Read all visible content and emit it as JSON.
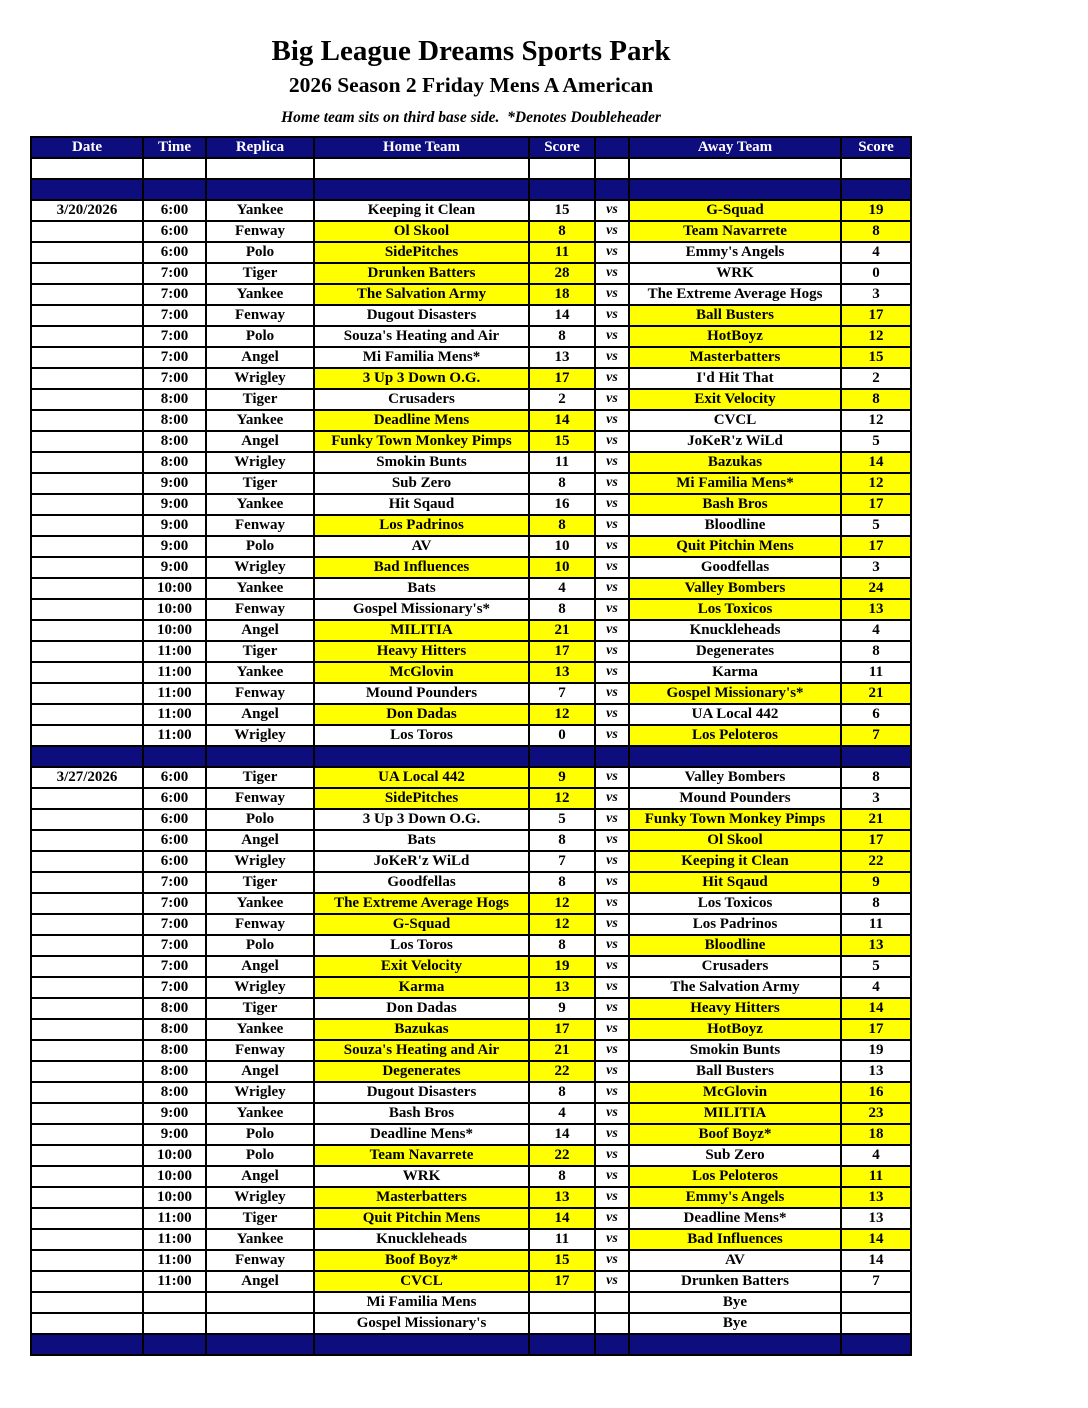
{
  "header": {
    "title": "Big League Dreams Sports Park",
    "subtitle": "2026 Season 2 Friday Mens A American",
    "note": "Home team sits on third base side.  *Denotes Doubleheader"
  },
  "colors": {
    "header_bg": "#0D0D7E",
    "header_text": "#FFFFFF",
    "highlight": "#FFFF00",
    "border": "#000000"
  },
  "table": {
    "columns": [
      "Date",
      "Time",
      "Replica",
      "Home Team",
      "Score",
      "",
      "Away Team",
      "Score"
    ],
    "vs_label": "vs",
    "rows": [
      {
        "t": "spacer"
      },
      {
        "t": "divider"
      },
      {
        "t": "game",
        "date": "3/20/2026",
        "time": "6:00",
        "replica": "Yankee",
        "home": "Keeping it Clean",
        "home_score": "15",
        "away": "G-Squad",
        "away_score": "19",
        "winner": "away"
      },
      {
        "t": "game",
        "date": "",
        "time": "6:00",
        "replica": "Fenway",
        "home": "Ol Skool",
        "home_score": "8",
        "away": "Team Navarrete",
        "away_score": "8",
        "winner": "both"
      },
      {
        "t": "game",
        "date": "",
        "time": "6:00",
        "replica": "Polo",
        "home": "SidePitches",
        "home_score": "11",
        "away": "Emmy's Angels",
        "away_score": "4",
        "winner": "home"
      },
      {
        "t": "game",
        "date": "",
        "time": "7:00",
        "replica": "Tiger",
        "home": "Drunken Batters",
        "home_score": "28",
        "away": "WRK",
        "away_score": "0",
        "winner": "home"
      },
      {
        "t": "game",
        "date": "",
        "time": "7:00",
        "replica": "Yankee",
        "home": "The Salvation Army",
        "home_score": "18",
        "away": "The Extreme Average Hogs",
        "away_score": "3",
        "winner": "home"
      },
      {
        "t": "game",
        "date": "",
        "time": "7:00",
        "replica": "Fenway",
        "home": "Dugout Disasters",
        "home_score": "14",
        "away": "Ball Busters",
        "away_score": "17",
        "winner": "away"
      },
      {
        "t": "game",
        "date": "",
        "time": "7:00",
        "replica": "Polo",
        "home": "Souza's Heating and Air",
        "home_score": "8",
        "away": "HotBoyz",
        "away_score": "12",
        "winner": "away"
      },
      {
        "t": "game",
        "date": "",
        "time": "7:00",
        "replica": "Angel",
        "home": "Mi Familia Mens*",
        "home_score": "13",
        "away": "Masterbatters",
        "away_score": "15",
        "winner": "away"
      },
      {
        "t": "game",
        "date": "",
        "time": "7:00",
        "replica": "Wrigley",
        "home": "3 Up 3 Down O.G.",
        "home_score": "17",
        "away": "I'd Hit That",
        "away_score": "2",
        "winner": "home"
      },
      {
        "t": "game",
        "date": "",
        "time": "8:00",
        "replica": "Tiger",
        "home": "Crusaders",
        "home_score": "2",
        "away": "Exit Velocity",
        "away_score": "8",
        "winner": "away"
      },
      {
        "t": "game",
        "date": "",
        "time": "8:00",
        "replica": "Yankee",
        "home": "Deadline Mens",
        "home_score": "14",
        "away": "CVCL",
        "away_score": "12",
        "winner": "home"
      },
      {
        "t": "game",
        "date": "",
        "time": "8:00",
        "replica": "Angel",
        "home": "Funky Town Monkey Pimps",
        "home_score": "15",
        "away": "JoKeR'z WiLd",
        "away_score": "5",
        "winner": "home"
      },
      {
        "t": "game",
        "date": "",
        "time": "8:00",
        "replica": "Wrigley",
        "home": "Smokin Bunts",
        "home_score": "11",
        "away": "Bazukas",
        "away_score": "14",
        "winner": "away"
      },
      {
        "t": "game",
        "date": "",
        "time": "9:00",
        "replica": "Tiger",
        "home": "Sub Zero",
        "home_score": "8",
        "away": "Mi Familia Mens*",
        "away_score": "12",
        "winner": "away"
      },
      {
        "t": "game",
        "date": "",
        "time": "9:00",
        "replica": "Yankee",
        "home": "Hit Sqaud",
        "home_score": "16",
        "away": "Bash Bros",
        "away_score": "17",
        "winner": "away"
      },
      {
        "t": "game",
        "date": "",
        "time": "9:00",
        "replica": "Fenway",
        "home": "Los Padrinos",
        "home_score": "8",
        "away": "Bloodline",
        "away_score": "5",
        "winner": "home"
      },
      {
        "t": "game",
        "date": "",
        "time": "9:00",
        "replica": "Polo",
        "home": "AV",
        "home_score": "10",
        "away": "Quit Pitchin Mens",
        "away_score": "17",
        "winner": "away"
      },
      {
        "t": "game",
        "date": "",
        "time": "9:00",
        "replica": "Wrigley",
        "home": "Bad Influences",
        "home_score": "10",
        "away": "Goodfellas",
        "away_score": "3",
        "winner": "home"
      },
      {
        "t": "game",
        "date": "",
        "time": "10:00",
        "replica": "Yankee",
        "home": "Bats",
        "home_score": "4",
        "away": "Valley Bombers",
        "away_score": "24",
        "winner": "away"
      },
      {
        "t": "game",
        "date": "",
        "time": "10:00",
        "replica": "Fenway",
        "home": "Gospel Missionary's*",
        "home_score": "8",
        "away": "Los Toxicos",
        "away_score": "13",
        "winner": "away"
      },
      {
        "t": "game",
        "date": "",
        "time": "10:00",
        "replica": "Angel",
        "home": "MILITIA",
        "home_score": "21",
        "away": "Knuckleheads",
        "away_score": "4",
        "winner": "home"
      },
      {
        "t": "game",
        "date": "",
        "time": "11:00",
        "replica": "Tiger",
        "home": "Heavy Hitters",
        "home_score": "17",
        "away": "Degenerates",
        "away_score": "8",
        "winner": "home"
      },
      {
        "t": "game",
        "date": "",
        "time": "11:00",
        "replica": "Yankee",
        "home": "McGlovin",
        "home_score": "13",
        "away": "Karma",
        "away_score": "11",
        "winner": "home"
      },
      {
        "t": "game",
        "date": "",
        "time": "11:00",
        "replica": "Fenway",
        "home": "Mound Pounders",
        "home_score": "7",
        "away": "Gospel Missionary's*",
        "away_score": "21",
        "winner": "away"
      },
      {
        "t": "game",
        "date": "",
        "time": "11:00",
        "replica": "Angel",
        "home": "Don Dadas",
        "home_score": "12",
        "away": "UA Local 442",
        "away_score": "6",
        "winner": "home"
      },
      {
        "t": "game",
        "date": "",
        "time": "11:00",
        "replica": "Wrigley",
        "home": "Los Toros",
        "home_score": "0",
        "away": "Los Peloteros",
        "away_score": "7",
        "winner": "away"
      },
      {
        "t": "divider"
      },
      {
        "t": "game",
        "date": "3/27/2026",
        "time": "6:00",
        "replica": "Tiger",
        "home": "UA Local 442",
        "home_score": "9",
        "away": "Valley Bombers",
        "away_score": "8",
        "winner": "home"
      },
      {
        "t": "game",
        "date": "",
        "time": "6:00",
        "replica": "Fenway",
        "home": "SidePitches",
        "home_score": "12",
        "away": "Mound Pounders",
        "away_score": "3",
        "winner": "home"
      },
      {
        "t": "game",
        "date": "",
        "time": "6:00",
        "replica": "Polo",
        "home": "3 Up 3 Down O.G.",
        "home_score": "5",
        "away": "Funky Town Monkey Pimps",
        "away_score": "21",
        "winner": "away"
      },
      {
        "t": "game",
        "date": "",
        "time": "6:00",
        "replica": "Angel",
        "home": "Bats",
        "home_score": "8",
        "away": "Ol Skool",
        "away_score": "17",
        "winner": "away"
      },
      {
        "t": "game",
        "date": "",
        "time": "6:00",
        "replica": "Wrigley",
        "home": "JoKeR'z WiLd",
        "home_score": "7",
        "away": "Keeping it Clean",
        "away_score": "22",
        "winner": "away"
      },
      {
        "t": "game",
        "date": "",
        "time": "7:00",
        "replica": "Tiger",
        "home": "Goodfellas",
        "home_score": "8",
        "away": "Hit Sqaud",
        "away_score": "9",
        "winner": "away"
      },
      {
        "t": "game",
        "date": "",
        "time": "7:00",
        "replica": "Yankee",
        "home": "The Extreme Average Hogs",
        "home_score": "12",
        "away": "Los Toxicos",
        "away_score": "8",
        "winner": "home"
      },
      {
        "t": "game",
        "date": "",
        "time": "7:00",
        "replica": "Fenway",
        "home": "G-Squad",
        "home_score": "12",
        "away": "Los Padrinos",
        "away_score": "11",
        "winner": "home"
      },
      {
        "t": "game",
        "date": "",
        "time": "7:00",
        "replica": "Polo",
        "home": "Los Toros",
        "home_score": "8",
        "away": "Bloodline",
        "away_score": "13",
        "winner": "away"
      },
      {
        "t": "game",
        "date": "",
        "time": "7:00",
        "replica": "Angel",
        "home": "Exit Velocity",
        "home_score": "19",
        "away": "Crusaders",
        "away_score": "5",
        "winner": "home"
      },
      {
        "t": "game",
        "date": "",
        "time": "7:00",
        "replica": "Wrigley",
        "home": "Karma",
        "home_score": "13",
        "away": "The Salvation Army",
        "away_score": "4",
        "winner": "home"
      },
      {
        "t": "game",
        "date": "",
        "time": "8:00",
        "replica": "Tiger",
        "home": "Don Dadas",
        "home_score": "9",
        "away": "Heavy Hitters",
        "away_score": "14",
        "winner": "away"
      },
      {
        "t": "game",
        "date": "",
        "time": "8:00",
        "replica": "Yankee",
        "home": "Bazukas",
        "home_score": "17",
        "away": "HotBoyz",
        "away_score": "17",
        "winner": "both"
      },
      {
        "t": "game",
        "date": "",
        "time": "8:00",
        "replica": "Fenway",
        "home": "Souza's Heating and Air",
        "home_score": "21",
        "away": "Smokin Bunts",
        "away_score": "19",
        "winner": "home"
      },
      {
        "t": "game",
        "date": "",
        "time": "8:00",
        "replica": "Angel",
        "home": "Degenerates",
        "home_score": "22",
        "away": "Ball Busters",
        "away_score": "13",
        "winner": "home"
      },
      {
        "t": "game",
        "date": "",
        "time": "8:00",
        "replica": "Wrigley",
        "home": "Dugout Disasters",
        "home_score": "8",
        "away": "McGlovin",
        "away_score": "16",
        "winner": "away"
      },
      {
        "t": "game",
        "date": "",
        "time": "9:00",
        "replica": "Yankee",
        "home": "Bash Bros",
        "home_score": "4",
        "away": "MILITIA",
        "away_score": "23",
        "winner": "away"
      },
      {
        "t": "game",
        "date": "",
        "time": "9:00",
        "replica": "Polo",
        "home": "Deadline Mens*",
        "home_score": "14",
        "away": "Boof Boyz*",
        "away_score": "18",
        "winner": "away"
      },
      {
        "t": "game",
        "date": "",
        "time": "10:00",
        "replica": "Polo",
        "home": "Team Navarrete",
        "home_score": "22",
        "away": "Sub Zero",
        "away_score": "4",
        "winner": "home"
      },
      {
        "t": "game",
        "date": "",
        "time": "10:00",
        "replica": "Angel",
        "home": "WRK",
        "home_score": "8",
        "away": "Los Peloteros",
        "away_score": "11",
        "winner": "away"
      },
      {
        "t": "game",
        "date": "",
        "time": "10:00",
        "replica": "Wrigley",
        "home": "Masterbatters",
        "home_score": "13",
        "away": "Emmy's Angels",
        "away_score": "13",
        "winner": "both"
      },
      {
        "t": "game",
        "date": "",
        "time": "11:00",
        "replica": "Tiger",
        "home": "Quit Pitchin Mens",
        "home_score": "14",
        "away": "Deadline Mens*",
        "away_score": "13",
        "winner": "home"
      },
      {
        "t": "game",
        "date": "",
        "time": "11:00",
        "replica": "Yankee",
        "home": "Knuckleheads",
        "home_score": "11",
        "away": "Bad Influences",
        "away_score": "14",
        "winner": "away"
      },
      {
        "t": "game",
        "date": "",
        "time": "11:00",
        "replica": "Fenway",
        "home": "Boof Boyz*",
        "home_score": "15",
        "away": "AV",
        "away_score": "14",
        "winner": "home"
      },
      {
        "t": "game",
        "date": "",
        "time": "11:00",
        "replica": "Angel",
        "home": "CVCL",
        "home_score": "17",
        "away": "Drunken Batters",
        "away_score": "7",
        "winner": "home"
      },
      {
        "t": "bye",
        "date": "",
        "time": "",
        "replica": "",
        "home": "Mi Familia Mens",
        "home_score": "",
        "away": "Bye",
        "away_score": "",
        "winner": "none"
      },
      {
        "t": "bye",
        "date": "",
        "time": "",
        "replica": "",
        "home": "Gospel Missionary's",
        "home_score": "",
        "away": "Bye",
        "away_score": "",
        "winner": "none"
      },
      {
        "t": "divider"
      }
    ]
  }
}
